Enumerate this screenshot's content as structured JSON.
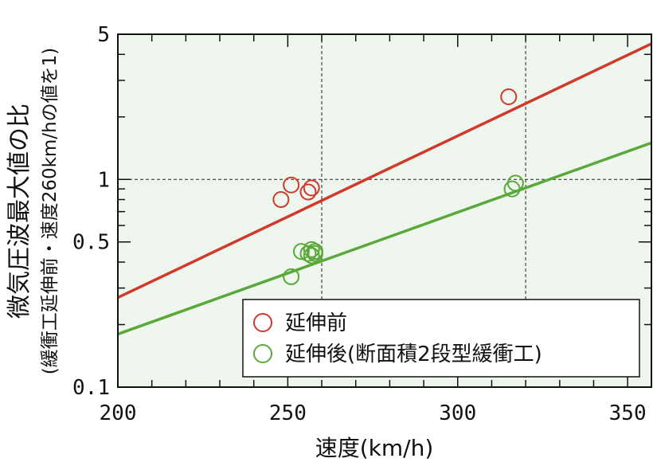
{
  "chart_data": {
    "type": "scatter",
    "xlabel": "速度(km/h)",
    "ylabel": "微気圧波最大値の比",
    "ylabel_sub": "(緩衝工延伸前・速度260km/hの値を1)",
    "xlim": [
      200,
      357
    ],
    "ylim": [
      0.1,
      5
    ],
    "y_scale": "log",
    "x_ticks": [
      200,
      250,
      300,
      350
    ],
    "x_tick_labels": [
      "200",
      "250",
      "300",
      "350"
    ],
    "y_ticks": [
      0.1,
      0.5,
      1,
      5
    ],
    "y_tick_labels": [
      "0.1",
      "0.5",
      "1",
      "5"
    ],
    "reference_lines": {
      "x": [
        260,
        320
      ],
      "y": [
        1
      ]
    },
    "background": "#eef6ee",
    "legend_position": "bottom-right",
    "series": [
      {
        "name": "延伸前",
        "color": "#d0392b",
        "points": [
          [
            248,
            0.8
          ],
          [
            251,
            0.94
          ],
          [
            256,
            0.87
          ],
          [
            257,
            0.91
          ],
          [
            315,
            2.5
          ]
        ],
        "fit_line": [
          [
            200,
            0.27
          ],
          [
            357,
            4.5
          ]
        ]
      },
      {
        "name": "延伸後(断面積2段型緩衝工)",
        "color": "#5aa83a",
        "points": [
          [
            251,
            0.34
          ],
          [
            254,
            0.45
          ],
          [
            256,
            0.44
          ],
          [
            257,
            0.43
          ],
          [
            257,
            0.46
          ],
          [
            258,
            0.44
          ],
          [
            258,
            0.45
          ],
          [
            316,
            0.9
          ],
          [
            317,
            0.96
          ]
        ],
        "fit_line": [
          [
            200,
            0.18
          ],
          [
            357,
            1.5
          ]
        ]
      }
    ]
  }
}
